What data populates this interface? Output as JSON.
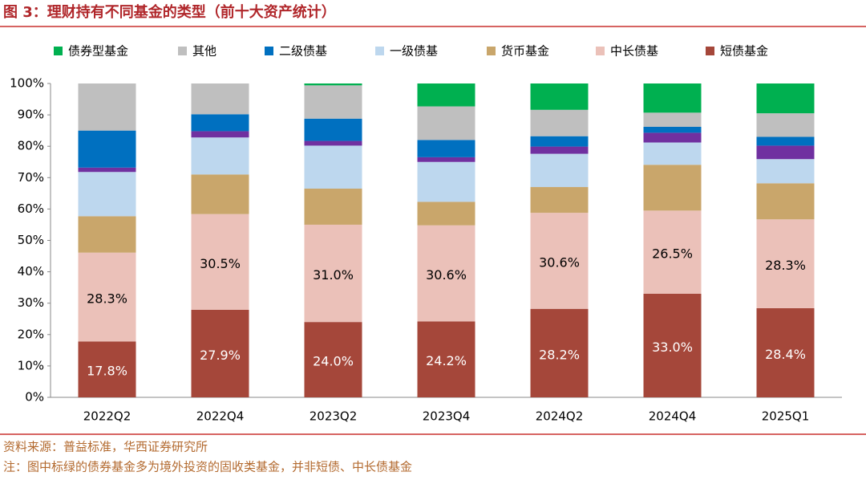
{
  "title": "图 3：理财持有不同基金的类型（前十大资产统计）",
  "source": "资料来源：普益标准，华西证券研究所",
  "note": "注：图中标绿的债券基金多为境外投资的固收类基金，并非短债、中长债基金",
  "chart_data": {
    "type": "stacked_bar",
    "categories": [
      "2022Q2",
      "2022Q4",
      "2023Q2",
      "2023Q4",
      "2024Q2",
      "2024Q4",
      "2025Q1"
    ],
    "series": [
      {
        "name": "短债基金",
        "color": "#a5473a",
        "values": [
          17.8,
          27.9,
          24.0,
          24.2,
          28.2,
          33.0,
          28.4
        ],
        "value_labels": [
          "17.8%",
          "27.9%",
          "24.0%",
          "24.2%",
          "28.2%",
          "33.0%",
          "28.4%"
        ]
      },
      {
        "name": "中长债基",
        "color": "#ebc1b9",
        "values": [
          28.3,
          30.5,
          31.0,
          30.6,
          30.6,
          26.5,
          28.3
        ],
        "value_labels": [
          "28.3%",
          "30.5%",
          "31.0%",
          "30.6%",
          "30.6%",
          "26.5%",
          "28.3%"
        ]
      },
      {
        "name": "货币基金",
        "color": "#c9a66b",
        "values": [
          11.6,
          12.6,
          11.5,
          7.5,
          8.2,
          14.6,
          11.5
        ]
      },
      {
        "name": "一级债基",
        "color": "#bdd7ee",
        "values": [
          14.1,
          11.8,
          13.7,
          12.7,
          10.6,
          7.1,
          7.7
        ]
      },
      {
        "name": null,
        "color": "#7030a0",
        "values": [
          1.4,
          2.0,
          1.5,
          1.5,
          2.3,
          3.1,
          4.3
        ]
      },
      {
        "name": "二级债基",
        "color": "#0070c0",
        "values": [
          11.8,
          5.4,
          7.1,
          5.5,
          3.3,
          1.9,
          2.8
        ]
      },
      {
        "name": "其他",
        "color": "#bfbfbf",
        "values": [
          15.0,
          9.8,
          10.6,
          10.7,
          8.4,
          4.5,
          7.5
        ]
      },
      {
        "name": "债券型基金",
        "color": "#00b050",
        "values": [
          0,
          0,
          0.6,
          7.3,
          8.4,
          9.3,
          9.5
        ]
      }
    ],
    "ylim": [
      0,
      100
    ],
    "yticks": [
      {
        "value": 0,
        "label": "0%"
      },
      {
        "value": 10,
        "label": "10%"
      },
      {
        "value": 20,
        "label": "20%"
      },
      {
        "value": 30,
        "label": "30%"
      },
      {
        "value": 40,
        "label": "40%"
      },
      {
        "value": 50,
        "label": "50%"
      },
      {
        "value": 60,
        "label": "60%"
      },
      {
        "value": 70,
        "label": "70%"
      },
      {
        "value": 80,
        "label": "80%"
      },
      {
        "value": 90,
        "label": "90%"
      },
      {
        "value": 100,
        "label": "100%"
      }
    ]
  }
}
